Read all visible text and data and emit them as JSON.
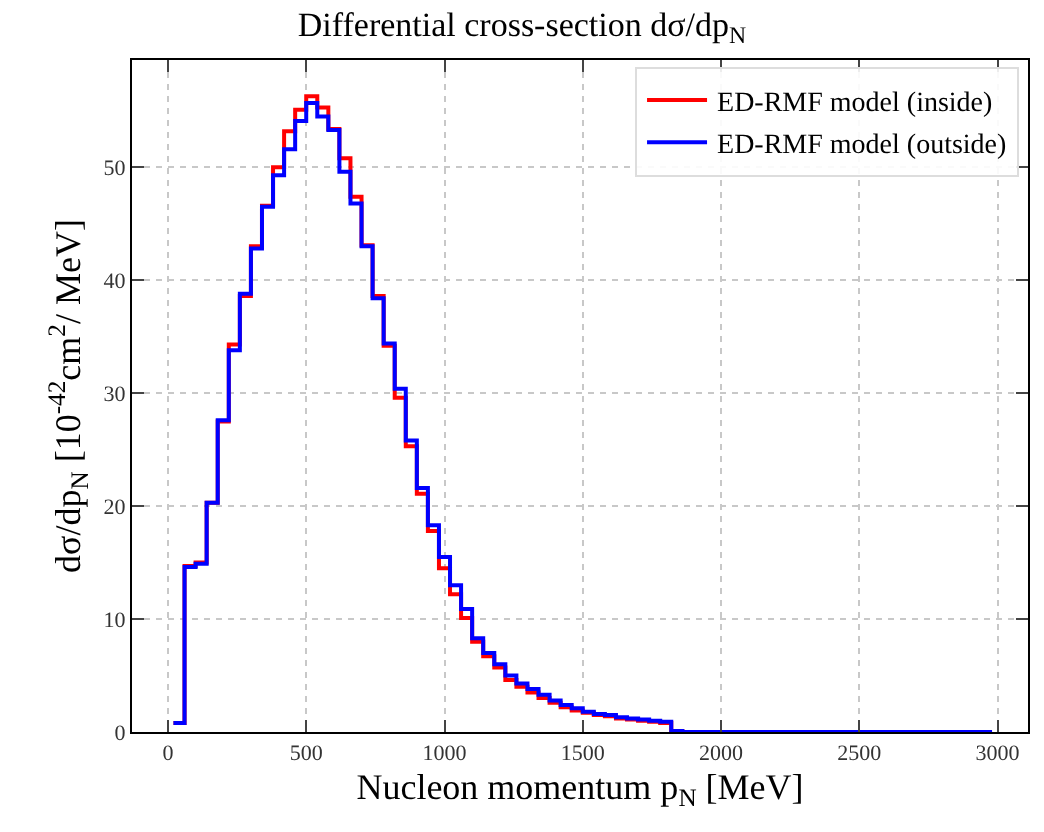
{
  "chart_data": {
    "type": "histogram",
    "title": "Differential cross-section dσ/dp$_{N}$",
    "xlabel": "Nucleon momentum p$_{N}$ [MeV]",
    "ylabel": "dσ/dp$_{N}$ [10$^{-42}$cm$^{2}$/ MeV]",
    "bins": [
      20,
      60,
      100,
      140,
      180,
      220,
      260,
      300,
      340,
      380,
      420,
      460,
      500,
      540,
      580,
      620,
      660,
      700,
      740,
      780,
      820,
      860,
      900,
      940,
      980,
      1020,
      1060,
      1100,
      1140,
      1180,
      1220,
      1260,
      1300,
      1340,
      1380,
      1420,
      1460,
      1500,
      1540,
      1580,
      1620,
      1660,
      1700,
      1740,
      1780,
      1820,
      1860,
      1900,
      1940,
      1980,
      2020,
      2060,
      2100,
      2140,
      2180,
      2220,
      2260,
      2300,
      2340,
      2380,
      2420,
      2460,
      2500,
      2540,
      2580,
      2620,
      2660,
      2700,
      2740,
      2780,
      2820,
      2860,
      2900,
      2940,
      2980
    ],
    "series": [
      {
        "name": "ED-RMF model (inside)",
        "color": "#ff0000",
        "values": [
          0.8,
          14.7,
          15.0,
          20.3,
          27.5,
          34.3,
          38.6,
          43.0,
          46.6,
          50.0,
          53.2,
          55.1,
          56.3,
          55.3,
          53.4,
          50.8,
          47.4,
          43.1,
          38.6,
          34.2,
          29.6,
          25.3,
          21.1,
          17.8,
          14.5,
          12.2,
          10.1,
          8.0,
          6.7,
          5.7,
          4.6,
          4.0,
          3.5,
          3.0,
          2.6,
          2.2,
          1.9,
          1.7,
          1.5,
          1.4,
          1.2,
          1.1,
          1.0,
          0.9,
          0.8,
          0.1,
          0,
          0,
          0,
          0,
          0,
          0,
          0,
          0,
          0,
          0,
          0,
          0,
          0,
          0,
          0,
          0,
          0,
          0,
          0,
          0,
          0,
          0,
          0,
          0,
          0,
          0,
          0,
          0
        ]
      },
      {
        "name": "ED-RMF model (outside)",
        "color": "#0000ff",
        "values": [
          0.8,
          14.6,
          14.9,
          20.3,
          27.6,
          33.8,
          38.8,
          42.8,
          46.5,
          49.3,
          51.6,
          54.1,
          55.7,
          54.5,
          53.3,
          49.6,
          46.8,
          43.0,
          38.4,
          34.4,
          30.4,
          25.8,
          21.6,
          18.3,
          15.5,
          13.0,
          10.9,
          8.3,
          7.0,
          6.0,
          5.0,
          4.3,
          3.8,
          3.3,
          2.8,
          2.4,
          2.1,
          1.8,
          1.6,
          1.5,
          1.3,
          1.2,
          1.1,
          1.0,
          0.9,
          0.1,
          0,
          0,
          0,
          0,
          0,
          0,
          0,
          0,
          0,
          0,
          0,
          0,
          0,
          0,
          0,
          0,
          0,
          0,
          0,
          0,
          0,
          0,
          0,
          0,
          0,
          0,
          0,
          0
        ]
      }
    ],
    "xlim": [
      -130,
      3110
    ],
    "xticks": [
      0,
      500,
      1000,
      1500,
      2000,
      2500,
      3000
    ],
    "ylim": [
      0,
      59.5
    ],
    "yticks": [
      0,
      10,
      20,
      30,
      40,
      50
    ],
    "grid": true,
    "legend": "top right",
    "line_style": "solid"
  }
}
